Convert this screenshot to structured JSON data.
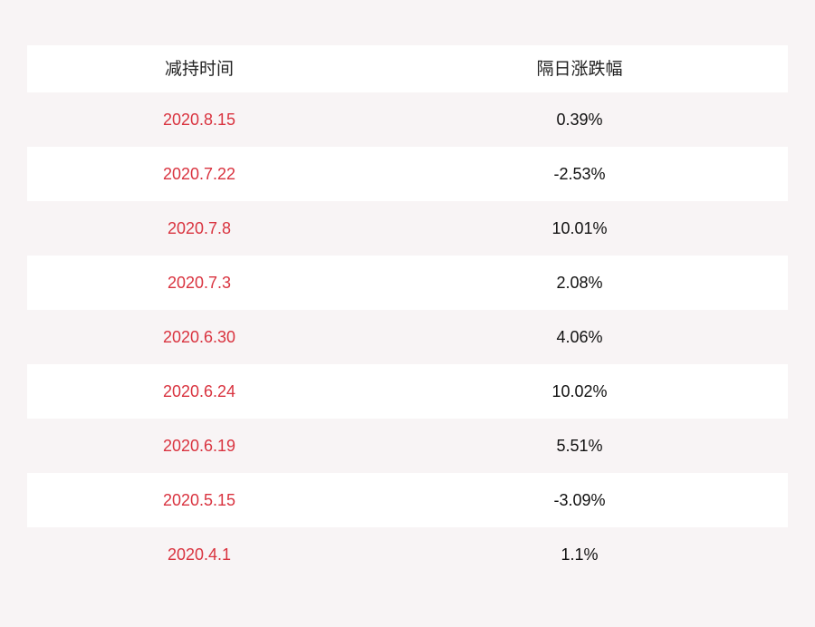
{
  "table": {
    "headers": [
      "减持时间",
      "隔日涨跌幅"
    ],
    "rows": [
      {
        "date": "2020.8.15",
        "change": "0.39%"
      },
      {
        "date": "2020.7.22",
        "change": "-2.53%"
      },
      {
        "date": "2020.7.8",
        "change": "10.01%"
      },
      {
        "date": "2020.7.3",
        "change": "2.08%"
      },
      {
        "date": "2020.6.30",
        "change": "4.06%"
      },
      {
        "date": "2020.6.24",
        "change": "10.02%"
      },
      {
        "date": "2020.6.19",
        "change": "5.51%"
      },
      {
        "date": "2020.5.15",
        "change": "-3.09%"
      },
      {
        "date": "2020.4.1",
        "change": "1.1%"
      }
    ]
  },
  "colors": {
    "background": "#f8f4f5",
    "row_alt": "#ffffff",
    "date_text": "#d9333f",
    "value_text": "#111111"
  }
}
